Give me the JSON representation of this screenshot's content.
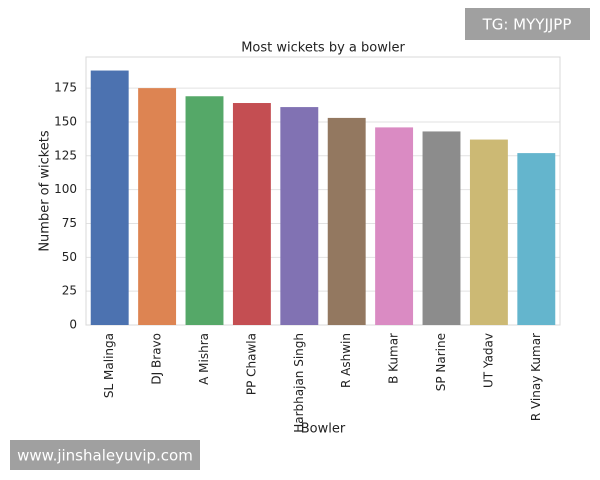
{
  "chart_data": {
    "type": "bar",
    "title": "Most wickets by a bowler",
    "x_label": "Bowler",
    "y_label": "Number of wickets",
    "categories": [
      "SL Malinga",
      "DJ Bravo",
      "A Mishra",
      "PP Chawla",
      "Harbhajan Singh",
      "R Ashwin",
      "B Kumar",
      "SP Narine",
      "UT Yadav",
      "R Vinay Kumar"
    ],
    "values": [
      188,
      175,
      169,
      164,
      161,
      153,
      146,
      143,
      137,
      127
    ],
    "colors": [
      "#4c72b0",
      "#dd8452",
      "#55a868",
      "#c44e52",
      "#8172b3",
      "#937860",
      "#da8bc3",
      "#8c8c8c",
      "#ccb974",
      "#64b5cd"
    ],
    "ylim": [
      0,
      198
    ],
    "yticks": [
      0,
      25,
      50,
      75,
      100,
      125,
      150,
      175
    ],
    "grid": true
  },
  "watermarks": [
    "TG: MYYJJPP",
    "www.jinshaleyuvip.com"
  ]
}
